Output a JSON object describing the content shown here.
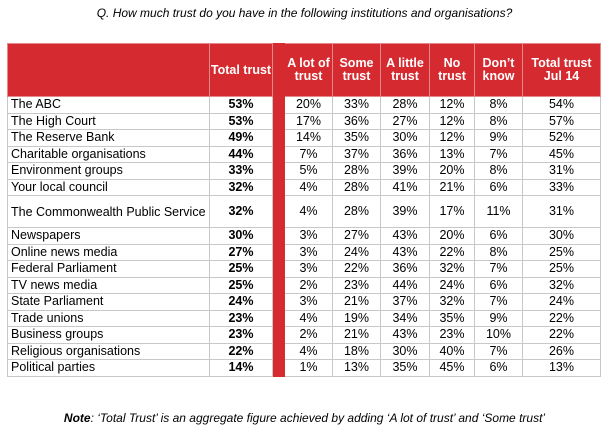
{
  "question": "Q. How much trust do you have in the following institutions and organisations?",
  "headers": {
    "total_trust": "Total trust",
    "a_lot": "A lot of trust",
    "some": "Some trust",
    "a_little": "A little trust",
    "no": "No trust",
    "dont_know": "Don’t know",
    "total_jul14": "Total trust Jul 14"
  },
  "rows": [
    {
      "name": "The ABC",
      "total": "53%",
      "a_lot": "20%",
      "some": "33%",
      "a_little": "28%",
      "no": "12%",
      "dont_know": "8%",
      "jul14": "54%"
    },
    {
      "name": "The High Court",
      "total": "53%",
      "a_lot": "17%",
      "some": "36%",
      "a_little": "27%",
      "no": "12%",
      "dont_know": "8%",
      "jul14": "57%"
    },
    {
      "name": "The Reserve Bank",
      "total": "49%",
      "a_lot": "14%",
      "some": "35%",
      "a_little": "30%",
      "no": "12%",
      "dont_know": "9%",
      "jul14": "52%"
    },
    {
      "name": "Charitable organisations",
      "total": "44%",
      "a_lot": "7%",
      "some": "37%",
      "a_little": "36%",
      "no": "13%",
      "dont_know": "7%",
      "jul14": "45%"
    },
    {
      "name": "Environment groups",
      "total": "33%",
      "a_lot": "5%",
      "some": "28%",
      "a_little": "39%",
      "no": "20%",
      "dont_know": "8%",
      "jul14": "31%"
    },
    {
      "name": "Your local council",
      "total": "32%",
      "a_lot": "4%",
      "some": "28%",
      "a_little": "41%",
      "no": "21%",
      "dont_know": "6%",
      "jul14": "33%"
    },
    {
      "name": "The Commonwealth Public Service",
      "total": "32%",
      "a_lot": "4%",
      "some": "28%",
      "a_little": "39%",
      "no": "17%",
      "dont_know": "11%",
      "jul14": "31%"
    },
    {
      "name": "Newspapers",
      "total": "30%",
      "a_lot": "3%",
      "some": "27%",
      "a_little": "43%",
      "no": "20%",
      "dont_know": "6%",
      "jul14": "30%"
    },
    {
      "name": "Online news media",
      "total": "27%",
      "a_lot": "3%",
      "some": "24%",
      "a_little": "43%",
      "no": "22%",
      "dont_know": "8%",
      "jul14": "25%"
    },
    {
      "name": "Federal Parliament",
      "total": "25%",
      "a_lot": "3%",
      "some": "22%",
      "a_little": "36%",
      "no": "32%",
      "dont_know": "7%",
      "jul14": "25%"
    },
    {
      "name": "TV news media",
      "total": "25%",
      "a_lot": "2%",
      "some": "23%",
      "a_little": "44%",
      "no": "24%",
      "dont_know": "6%",
      "jul14": "32%"
    },
    {
      "name": "State Parliament",
      "total": "24%",
      "a_lot": "3%",
      "some": "21%",
      "a_little": "37%",
      "no": "32%",
      "dont_know": "7%",
      "jul14": "24%"
    },
    {
      "name": "Trade unions",
      "total": "23%",
      "a_lot": "4%",
      "some": "19%",
      "a_little": "34%",
      "no": "35%",
      "dont_know": "9%",
      "jul14": "22%"
    },
    {
      "name": "Business groups",
      "total": "23%",
      "a_lot": "2%",
      "some": "21%",
      "a_little": "43%",
      "no": "23%",
      "dont_know": "10%",
      "jul14": "22%"
    },
    {
      "name": "Religious organisations",
      "total": "22%",
      "a_lot": "4%",
      "some": "18%",
      "a_little": "30%",
      "no": "40%",
      "dont_know": "7%",
      "jul14": "26%"
    },
    {
      "name": "Political parties",
      "total": "14%",
      "a_lot": "1%",
      "some": "13%",
      "a_little": "35%",
      "no": "45%",
      "dont_know": "6%",
      "jul14": "13%"
    }
  ],
  "note": {
    "label": "Note",
    "text": ": ‘Total Trust’ is an aggregate figure achieved by adding ‘A lot of trust’ and ‘Some trust’"
  },
  "colors": {
    "header_bg": "#d52b30",
    "header_text": "#ffffff",
    "grid": "#c8c8c8"
  }
}
